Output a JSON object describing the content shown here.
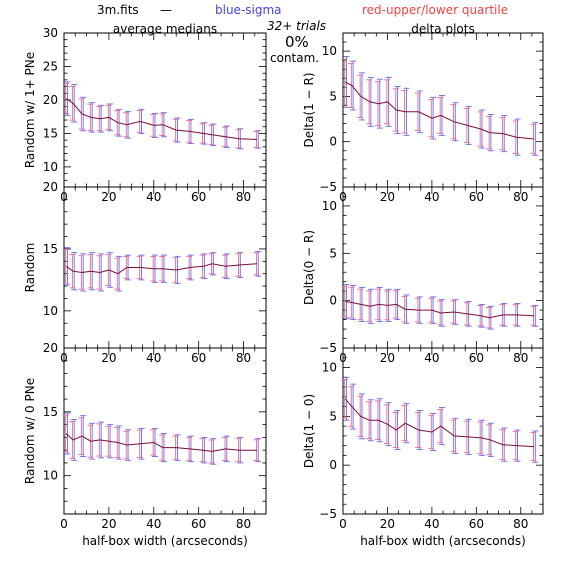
{
  "header": {
    "file": "3m.fits",
    "dash": "—",
    "sigma": "blue-sigma",
    "quartile": "red-upper/lower quartile",
    "left_title": "average medians",
    "right_title": "delta plots",
    "trials": "32+ trials",
    "percent": "0%",
    "contam": "contam."
  },
  "colors": {
    "median": "#7a1030",
    "sigma": "#6a6ae8",
    "quartile": "#e06a9a"
  },
  "chart_data": [
    {
      "id": "left-top",
      "type": "line",
      "ylabel": "Random w/ 1+ PNe",
      "xlabel": "",
      "xlim": [
        0,
        90
      ],
      "ylim": [
        7,
        30
      ],
      "yticks": [
        10,
        15,
        20,
        25,
        30
      ],
      "xticks": [
        0,
        20,
        40,
        60,
        80
      ],
      "x": [
        1,
        4,
        8,
        12,
        16,
        20,
        24,
        28,
        34,
        40,
        44,
        50,
        56,
        62,
        66,
        72,
        78,
        86
      ],
      "values": [
        20.2,
        19.5,
        17.9,
        17.4,
        17.2,
        17.4,
        16.6,
        16.3,
        16.8,
        16.2,
        16.3,
        15.5,
        15.3,
        15.0,
        14.8,
        14.5,
        14.2,
        14.1
      ],
      "err": [
        2.5,
        2.8,
        2.5,
        2.2,
        2.0,
        2.0,
        2.0,
        2.0,
        1.8,
        1.8,
        1.8,
        1.8,
        1.8,
        1.6,
        1.6,
        1.6,
        1.5,
        1.3
      ]
    },
    {
      "id": "left-mid",
      "type": "line",
      "ylabel": "Random",
      "xlabel": "",
      "xlim": [
        0,
        90
      ],
      "ylim": [
        7,
        20
      ],
      "yticks": [
        10,
        15,
        20
      ],
      "xticks": [
        0,
        20,
        40,
        60,
        80
      ],
      "x": [
        1,
        4,
        8,
        12,
        16,
        20,
        24,
        28,
        34,
        40,
        44,
        50,
        56,
        62,
        66,
        72,
        78,
        86
      ],
      "values": [
        13.6,
        13.2,
        13.1,
        13.2,
        13.1,
        13.3,
        13.0,
        13.5,
        13.5,
        13.4,
        13.4,
        13.3,
        13.5,
        13.6,
        13.8,
        13.6,
        13.7,
        13.8
      ],
      "err": [
        1.5,
        1.5,
        1.5,
        1.5,
        1.5,
        1.4,
        1.4,
        1.0,
        1.0,
        1.1,
        1.1,
        1.1,
        1.0,
        1.0,
        0.9,
        1.0,
        1.0,
        1.0
      ]
    },
    {
      "id": "left-bot",
      "type": "line",
      "ylabel": "Random w/ 0 PNe",
      "xlabel": "half-box width (arcseconds)",
      "xlim": [
        0,
        90
      ],
      "ylim": [
        7,
        20
      ],
      "yticks": [
        10,
        15,
        20
      ],
      "xticks": [
        0,
        20,
        40,
        60,
        80
      ],
      "x": [
        1,
        4,
        8,
        12,
        16,
        20,
        24,
        28,
        34,
        40,
        44,
        50,
        56,
        62,
        66,
        72,
        78,
        86
      ],
      "values": [
        13.3,
        12.8,
        13.1,
        12.7,
        12.8,
        12.7,
        12.6,
        12.4,
        12.5,
        12.6,
        12.2,
        12.2,
        12.1,
        12.0,
        11.9,
        12.1,
        12.0,
        12.0
      ],
      "err": [
        1.6,
        1.6,
        1.6,
        1.4,
        1.4,
        1.3,
        1.3,
        1.2,
        1.2,
        1.1,
        1.1,
        1.0,
        1.0,
        1.0,
        1.0,
        1.0,
        1.0,
        0.9
      ]
    },
    {
      "id": "right-top",
      "type": "line",
      "ylabel": "Delta(1 − R)",
      "xlabel": "",
      "xlim": [
        0,
        90
      ],
      "ylim": [
        -5,
        12
      ],
      "yticks": [
        -5,
        0,
        5,
        10
      ],
      "xticks": [
        0,
        20,
        40,
        60,
        80
      ],
      "x": [
        1,
        4,
        8,
        12,
        16,
        20,
        24,
        28,
        34,
        40,
        44,
        50,
        56,
        62,
        66,
        72,
        78,
        86
      ],
      "values": [
        6.6,
        6.2,
        5.0,
        4.4,
        4.2,
        4.4,
        3.5,
        3.3,
        3.3,
        2.6,
        2.9,
        2.2,
        1.8,
        1.4,
        1.0,
        0.9,
        0.5,
        0.3
      ],
      "err": [
        2.8,
        2.7,
        2.6,
        2.7,
        2.7,
        2.7,
        2.6,
        2.6,
        2.3,
        2.3,
        2.2,
        2.1,
        2.1,
        2.1,
        2.0,
        2.0,
        2.0,
        1.8
      ]
    },
    {
      "id": "right-mid",
      "type": "line",
      "ylabel": "Delta(0 − R)",
      "xlabel": "",
      "xlim": [
        0,
        90
      ],
      "ylim": [
        -5,
        12
      ],
      "yticks": [
        -5,
        0,
        5,
        10
      ],
      "xticks": [
        0,
        20,
        40,
        60,
        80
      ],
      "x": [
        1,
        4,
        8,
        12,
        16,
        20,
        24,
        28,
        34,
        40,
        44,
        50,
        56,
        62,
        66,
        72,
        78,
        86
      ],
      "values": [
        -0.1,
        -0.2,
        -0.4,
        -0.6,
        -0.4,
        -0.5,
        -0.4,
        -0.9,
        -1.0,
        -1.0,
        -1.3,
        -1.2,
        -1.4,
        -1.6,
        -1.8,
        -1.5,
        -1.5,
        -1.6
      ],
      "err": [
        1.8,
        1.8,
        1.8,
        1.8,
        1.8,
        1.7,
        1.6,
        1.5,
        1.4,
        1.4,
        1.4,
        1.3,
        1.3,
        1.2,
        1.2,
        1.2,
        1.2,
        1.1
      ]
    },
    {
      "id": "right-bot",
      "type": "line",
      "ylabel": "Delta(1 − 0)",
      "xlabel": "half-box width (arcseconds)",
      "xlim": [
        0,
        90
      ],
      "ylim": [
        -5,
        12
      ],
      "yticks": [
        -5,
        0,
        5,
        10
      ],
      "xticks": [
        0,
        20,
        40,
        60,
        80
      ],
      "x": [
        1,
        4,
        8,
        12,
        16,
        20,
        24,
        28,
        34,
        40,
        44,
        50,
        56,
        62,
        66,
        72,
        78,
        86
      ],
      "values": [
        6.8,
        6.0,
        5.0,
        4.6,
        4.6,
        4.2,
        3.6,
        4.3,
        3.6,
        3.4,
        4.0,
        3.0,
        2.9,
        2.8,
        2.6,
        2.1,
        2.0,
        1.9
      ],
      "err": [
        2.2,
        2.3,
        2.3,
        2.1,
        2.2,
        2.2,
        2.0,
        2.0,
        2.0,
        1.9,
        1.9,
        1.8,
        1.8,
        1.8,
        1.7,
        1.7,
        1.6,
        1.6
      ]
    }
  ]
}
